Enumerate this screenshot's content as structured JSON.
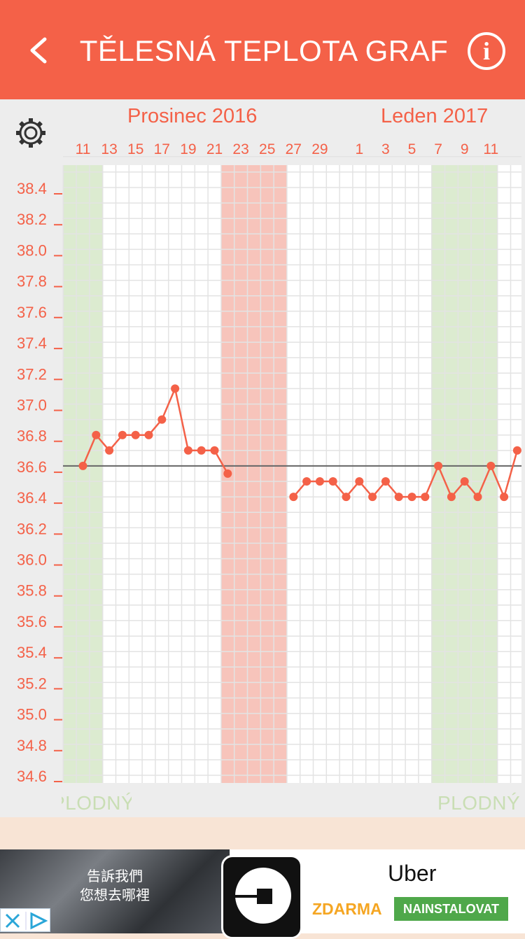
{
  "header": {
    "title": "TĚLESNÁ TEPLOTA GRAF",
    "back_icon": "chevron-left-icon",
    "info_icon": "info-icon",
    "info_glyph": "i"
  },
  "settings": {
    "icon": "gear-icon"
  },
  "colors": {
    "accent": "#f46148",
    "fertile": "#dcebd0",
    "period": "#f7c4bb",
    "data_line": "#f46148",
    "baseline": "#666666",
    "axis_text": "#f46148"
  },
  "months": [
    "Prosinec 2016",
    "Leden 2017"
  ],
  "chart_data": {
    "type": "line",
    "x_tick_labels": [
      "11",
      "13",
      "15",
      "17",
      "19",
      "21",
      "23",
      "25",
      "27",
      "29",
      "1",
      "3",
      "5",
      "7",
      "9",
      "11"
    ],
    "ylim": [
      34.6,
      38.4
    ],
    "y_tick_labels": [
      "38.4",
      "38.2",
      "38.0",
      "37.8",
      "37.6",
      "37.4",
      "37.2",
      "37.0",
      "36.8",
      "36.6",
      "36.4",
      "36.2",
      "36.0",
      "35.8",
      "35.6",
      "35.4",
      "35.2",
      "35.0",
      "34.8",
      "34.6"
    ],
    "grid": true,
    "baseline": 36.6,
    "series": [
      {
        "x": [
          "2016-12-11",
          "2016-12-12",
          "2016-12-13",
          "2016-12-14",
          "2016-12-15",
          "2016-12-16",
          "2016-12-17",
          "2016-12-18",
          "2016-12-19",
          "2016-12-20",
          "2016-12-21",
          "2016-12-22"
        ],
        "y": [
          36.6,
          36.8,
          36.7,
          36.8,
          36.8,
          36.8,
          36.9,
          37.1,
          36.7,
          36.7,
          36.7,
          36.55
        ]
      },
      {
        "x": [
          "2016-12-27",
          "2016-12-28",
          "2016-12-29",
          "2016-12-30",
          "2016-12-31",
          "2017-01-01",
          "2017-01-02",
          "2017-01-03",
          "2017-01-04",
          "2017-01-05",
          "2017-01-06",
          "2017-01-07",
          "2017-01-08",
          "2017-01-09",
          "2017-01-10",
          "2017-01-11",
          "2017-01-12",
          "2017-01-13"
        ],
        "y": [
          36.4,
          36.5,
          36.5,
          36.5,
          36.4,
          36.5,
          36.4,
          36.5,
          36.4,
          36.4,
          36.4,
          36.6,
          36.4,
          36.5,
          36.4,
          36.6,
          36.4,
          36.7
        ]
      }
    ],
    "bands": [
      {
        "kind": "fertile",
        "from": "2016-12-09",
        "to": "2016-12-12",
        "label": "PLODNÝ"
      },
      {
        "kind": "period",
        "from": "2016-12-22",
        "to": "2016-12-26"
      },
      {
        "kind": "fertile",
        "from": "2017-01-07",
        "to": "2017-01-11",
        "label": "PLODNÝ"
      }
    ]
  },
  "fertile_label": "PLODNÝ",
  "ad": {
    "photo_text_1": "告訴我們",
    "photo_text_2": "您想去哪裡",
    "adchoices_icon": "adchoices-icon",
    "app_name": "Uber",
    "price": "ZDARMA",
    "cta": "NAINSTALOVAT"
  }
}
